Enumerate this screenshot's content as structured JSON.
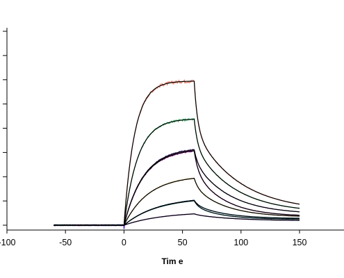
{
  "chart_data": {
    "type": "line",
    "title": "",
    "xlabel": "Tim e",
    "ylabel": "",
    "xlim": [
      -100,
      188
    ],
    "ylim": [
      -2,
      80
    ],
    "x_ticks": [
      -100,
      -50,
      0,
      50,
      100,
      150
    ],
    "x_tick_labels": [
      "-100",
      "-50",
      "0",
      "50",
      "100",
      "150"
    ],
    "y_ticks": [
      0,
      10,
      20,
      30,
      40,
      50,
      60,
      70,
      80
    ],
    "grid": false,
    "legend": "none",
    "association_start": 0,
    "dissociation_start": 60,
    "baseline_start": -60,
    "end_time": 150,
    "series": [
      {
        "color": "#e8806b",
        "plateau": 59.5,
        "ka": 0.11,
        "kd": 0.027,
        "fast_frac": 0.37,
        "fast_kd": 0.35,
        "end": 9.5
      },
      {
        "color": "#4cc27a",
        "plateau": 44.0,
        "ka": 0.085,
        "kd": 0.03,
        "fast_frac": 0.28,
        "fast_kd": 0.35,
        "end": 8.5
      },
      {
        "color": "#6a4fa8",
        "plateau": 32.0,
        "ka": 0.06,
        "kd": 0.034,
        "fast_frac": 0.18,
        "fast_kd": 0.35,
        "end": 7.5
      },
      {
        "color": "#b01ab0",
        "plateau": 31.5,
        "ka": 0.06,
        "kd": 0.04,
        "fast_frac": 0.3,
        "fast_kd": 0.3,
        "end": 6.0
      },
      {
        "color": "#c8a84a",
        "plateau": 20.5,
        "ka": 0.048,
        "kd": 0.038,
        "fast_frac": 0.22,
        "fast_kd": 0.3,
        "end": 5.5
      },
      {
        "color": "#2b8fd6",
        "plateau": 11.7,
        "ka": 0.035,
        "kd": 0.04,
        "fast_frac": 0.22,
        "fast_kd": 0.3,
        "end": 4.5
      },
      {
        "color": "#23c9c9",
        "plateau": 11.5,
        "ka": 0.035,
        "kd": 0.045,
        "fast_frac": 0.28,
        "fast_kd": 0.3,
        "end": 4.0
      },
      {
        "color": "#7b2bd6",
        "plateau": 5.6,
        "ka": 0.03,
        "kd": 0.03,
        "fast_frac": 0.1,
        "fast_kd": 0.3,
        "end": 3.0
      }
    ],
    "fit_color": "#000000"
  }
}
